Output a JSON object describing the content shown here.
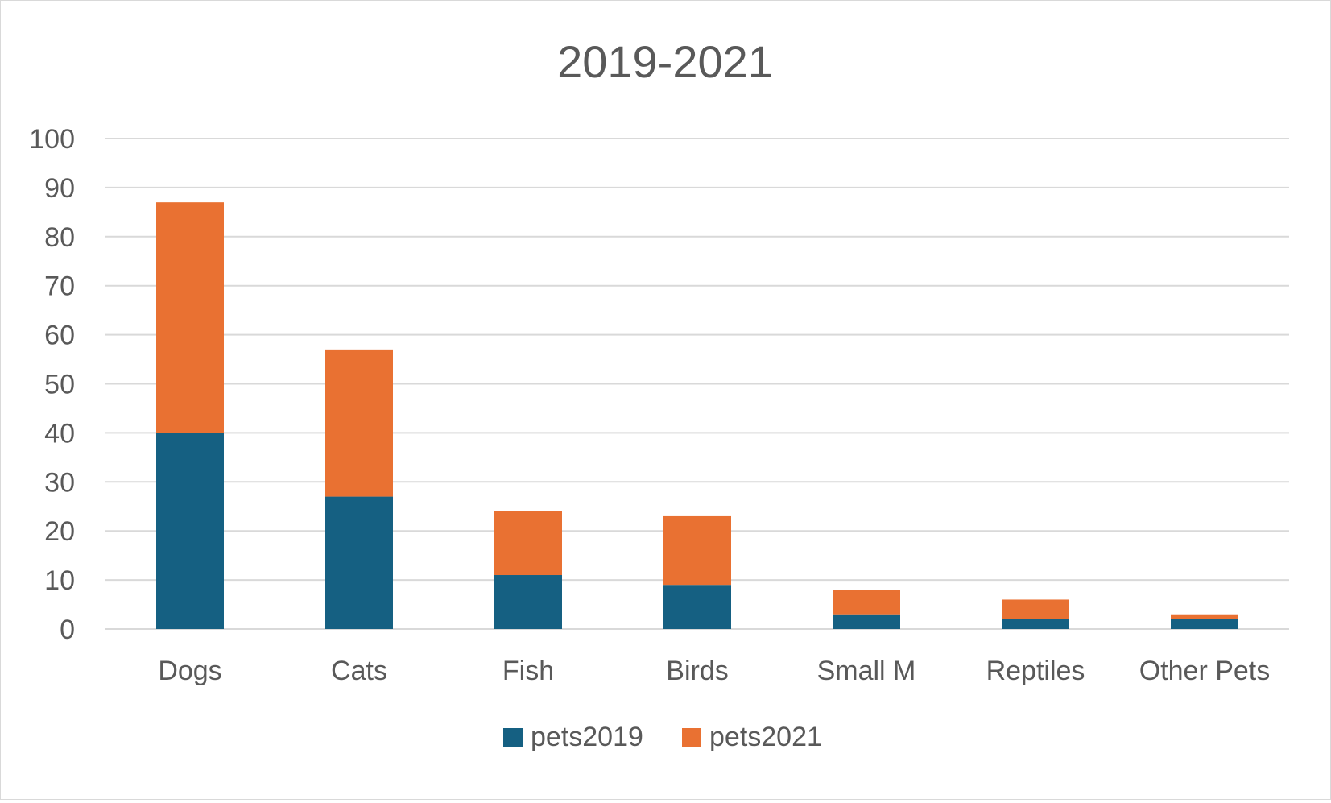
{
  "chart_data": {
    "type": "bar",
    "stacked": true,
    "title": "2019-2021",
    "xlabel": "",
    "ylabel": "",
    "categories": [
      "Dogs",
      "Cats",
      "Fish",
      "Birds",
      "Small M",
      "Reptiles",
      "Other Pets"
    ],
    "series": [
      {
        "name": "pets2019",
        "values": [
          40,
          27,
          11,
          9,
          3,
          2,
          2
        ]
      },
      {
        "name": "pets2021",
        "values": [
          47,
          30,
          13,
          14,
          5,
          4,
          1
        ]
      }
    ],
    "ylim": [
      0,
      100
    ],
    "yticks": [
      "0",
      "10",
      "20",
      "30",
      "40",
      "50",
      "60",
      "70",
      "80",
      "90",
      "100"
    ],
    "grid": true,
    "legend_position": "bottom",
    "colors": {
      "pets2019": "#156082",
      "pets2021": "#E97132",
      "grid": "#d9d9d9",
      "text": "#595959"
    }
  }
}
